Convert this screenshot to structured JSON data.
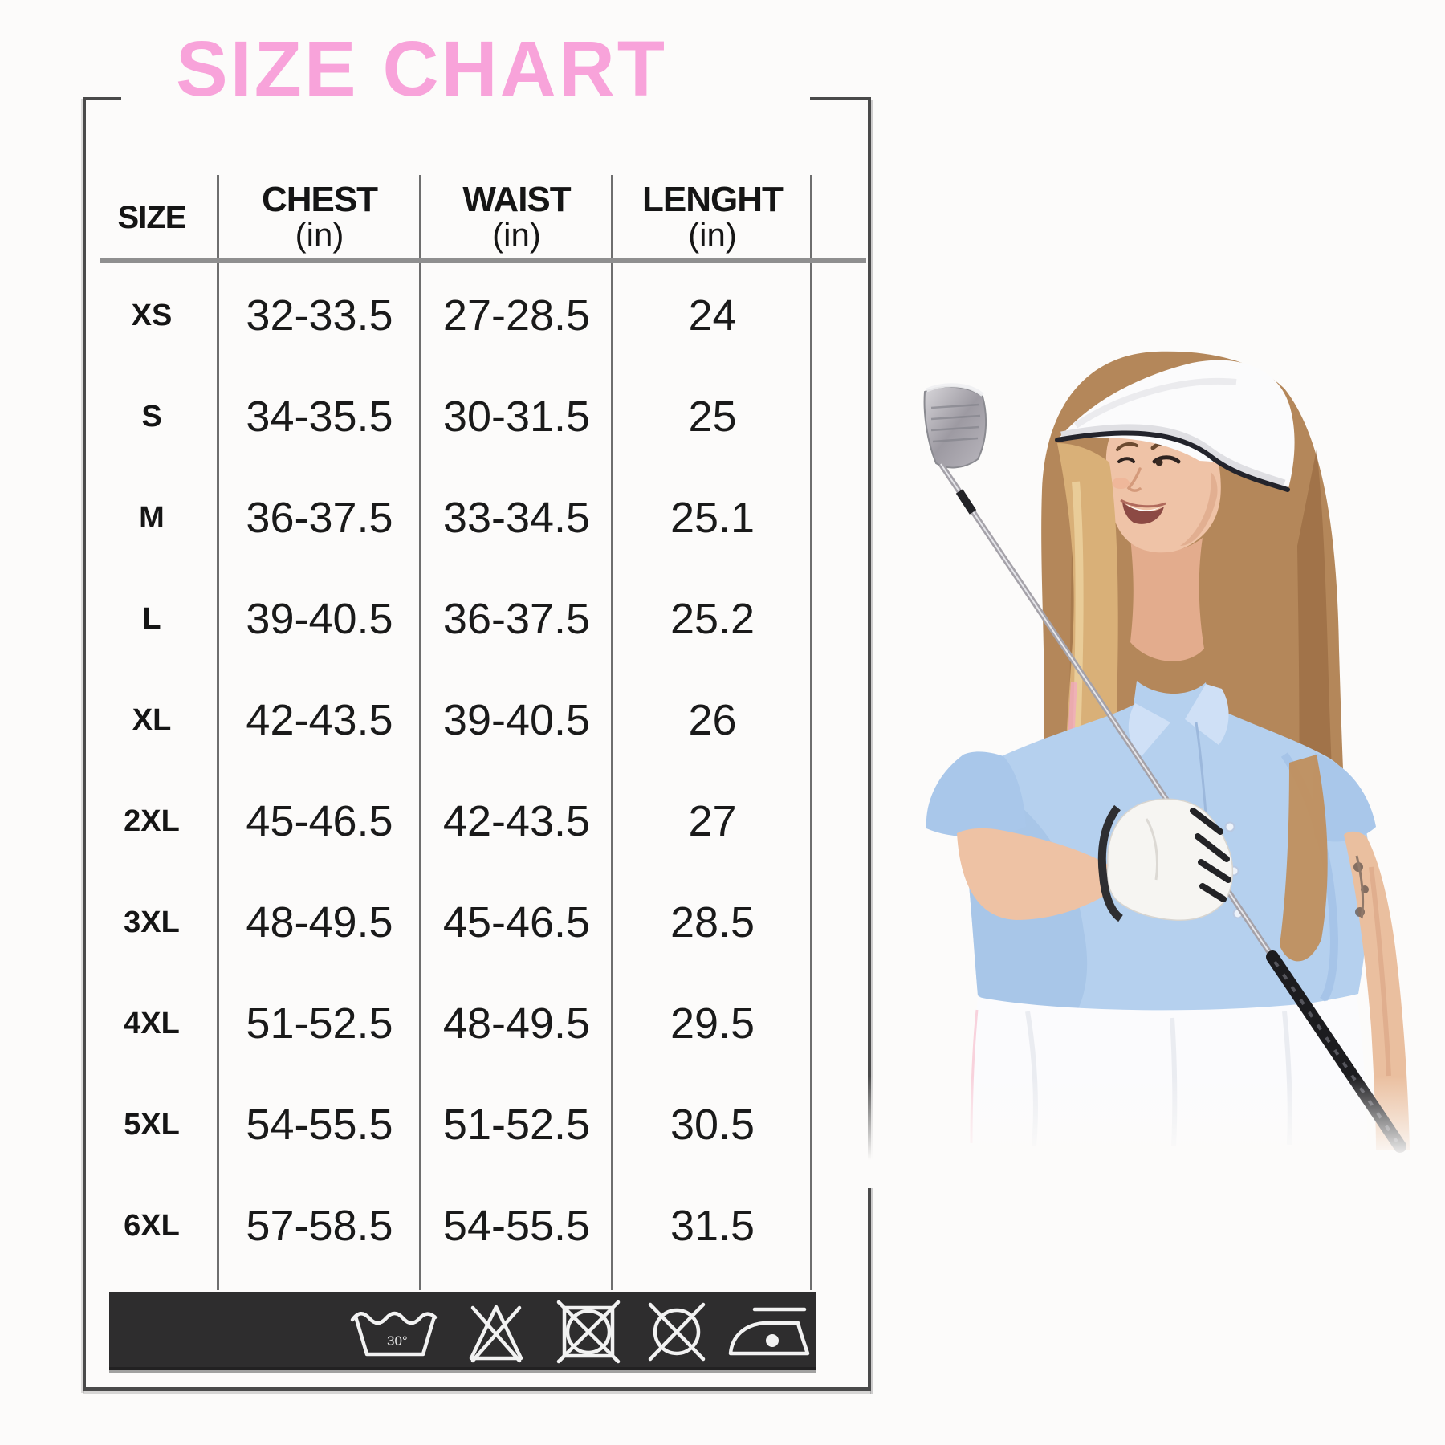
{
  "title": "SIZE CHART",
  "table": {
    "columns": [
      {
        "label": "SIZE",
        "unit": ""
      },
      {
        "label": "CHEST",
        "unit": "(in)"
      },
      {
        "label": "WAIST",
        "unit": "(in)"
      },
      {
        "label": "LENGHT",
        "unit": "(in)"
      }
    ],
    "rows": [
      {
        "size": "XS",
        "chest": "32-33.5",
        "waist": "27-28.5",
        "length": "24",
        "emphasis": true
      },
      {
        "size": "S",
        "chest": "34-35.5",
        "waist": "30-31.5",
        "length": "25",
        "emphasis": false
      },
      {
        "size": "M",
        "chest": "36-37.5",
        "waist": "33-34.5",
        "length": "25.1",
        "emphasis": false
      },
      {
        "size": "L",
        "chest": "39-40.5",
        "waist": "36-37.5",
        "length": "25.2",
        "emphasis": false
      },
      {
        "size": "XL",
        "chest": "42-43.5",
        "waist": "39-40.5",
        "length": "26",
        "emphasis": false
      },
      {
        "size": "2XL",
        "chest": "45-46.5",
        "waist": "42-43.5",
        "length": "27",
        "emphasis": false
      },
      {
        "size": "3XL",
        "chest": "48-49.5",
        "waist": "45-46.5",
        "length": "28.5",
        "emphasis": false
      },
      {
        "size": "4XL",
        "chest": "51-52.5",
        "waist": "48-49.5",
        "length": "29.5",
        "emphasis": false
      },
      {
        "size": "5XL",
        "chest": "54-55.5",
        "waist": "51-52.5",
        "length": "30.5",
        "emphasis": false
      },
      {
        "size": "6XL",
        "chest": "57-58.5",
        "waist": "54-55.5",
        "length": "31.5",
        "emphasis": false
      }
    ]
  },
  "care": {
    "wash_temp": "30°",
    "icons": [
      "wash-30-icon",
      "do-not-bleach-icon",
      "do-not-tumble-dry-icon",
      "do-not-dry-clean-icon",
      "iron-icon"
    ]
  },
  "photo": {
    "description": "Woman golfer wearing a white sun visor and light blue polo shirt, white skirt and white glove, holding a golf club diagonally across her shoulder"
  },
  "colors": {
    "title_pink": "#f8a3da",
    "care_bar_bg": "#2e2d2e",
    "frame_gray": "#4a4a4a",
    "text_black": "#151515",
    "polo_blue": "#b5d0ee"
  },
  "chart_data": {
    "type": "table",
    "title": "SIZE CHART",
    "columns": [
      "SIZE",
      "CHEST (in)",
      "WAIST (in)",
      "LENGHT (in)"
    ],
    "rows": [
      [
        "XS",
        "32-33.5",
        "27-28.5",
        "24"
      ],
      [
        "S",
        "34-35.5",
        "30-31.5",
        "25"
      ],
      [
        "M",
        "36-37.5",
        "33-34.5",
        "25.1"
      ],
      [
        "L",
        "39-40.5",
        "36-37.5",
        "25.2"
      ],
      [
        "XL",
        "42-43.5",
        "39-40.5",
        "26"
      ],
      [
        "2XL",
        "45-46.5",
        "42-43.5",
        "27"
      ],
      [
        "3XL",
        "48-49.5",
        "45-46.5",
        "28.5"
      ],
      [
        "4XL",
        "51-52.5",
        "48-49.5",
        "29.5"
      ],
      [
        "5XL",
        "54-55.5",
        "51-52.5",
        "30.5"
      ],
      [
        "6XL",
        "57-58.5",
        "54-55.5",
        "31.5"
      ]
    ]
  }
}
